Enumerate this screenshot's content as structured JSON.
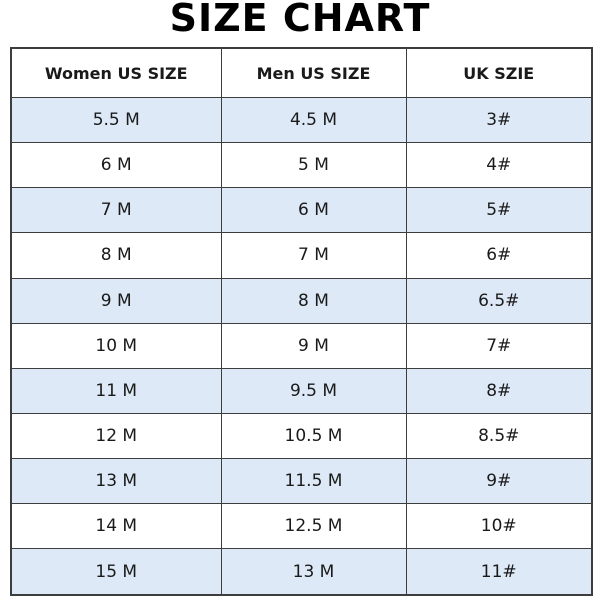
{
  "title": "SIZE CHART",
  "columns": [
    "Women US SIZE",
    "Men US SIZE",
    "UK SZIE"
  ],
  "rows": [
    [
      "5.5 M",
      "4.5 M",
      "3#"
    ],
    [
      "6 M",
      "5 M",
      "4#"
    ],
    [
      "7 M",
      "6 M",
      "5#"
    ],
    [
      "8 M",
      "7 M",
      "6#"
    ],
    [
      "9 M",
      "8 M",
      "6.5#"
    ],
    [
      "10 M",
      "9 M",
      "7#"
    ],
    [
      "11 M",
      "9.5 M",
      "8#"
    ],
    [
      "12 M",
      "10.5 M",
      "8.5#"
    ],
    [
      "13 M",
      "11.5 M",
      "9#"
    ],
    [
      "14 M",
      "12.5 M",
      "10#"
    ],
    [
      "15 M",
      "13 M",
      "11#"
    ]
  ],
  "colors": {
    "stripe": "#dde9f7",
    "border": "#3d3d3d"
  }
}
